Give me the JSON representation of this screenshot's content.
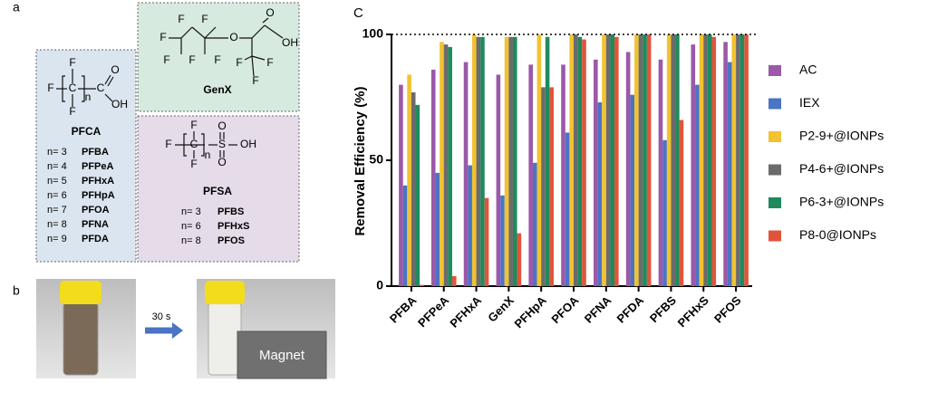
{
  "panel_labels": [
    "a",
    "b",
    "C"
  ],
  "pfca": {
    "atoms": [
      "F",
      "F",
      "C",
      "C",
      "O",
      "OH",
      "F",
      "n"
    ],
    "title": "PFCA",
    "members": [
      {
        "n": "n= 3",
        "name": "PFBA"
      },
      {
        "n": "n= 4",
        "name": "PFPeA"
      },
      {
        "n": "n= 5",
        "name": "PFHxA"
      },
      {
        "n": "n= 6",
        "name": "PFHpA"
      },
      {
        "n": "n= 7",
        "name": "PFOA"
      },
      {
        "n": "n= 8",
        "name": "PFNA"
      },
      {
        "n": "n= 9",
        "name": "PFDA"
      }
    ]
  },
  "genx": {
    "atoms": [
      "F",
      "F",
      "F",
      "F",
      "F",
      "F",
      "O",
      "O",
      "OH",
      "F",
      "F",
      "F"
    ],
    "title": "GenX"
  },
  "pfsa": {
    "atoms": [
      "F",
      "F",
      "C",
      "S",
      "O",
      "O",
      "OH",
      "F",
      "n"
    ],
    "title": "PFSA",
    "members": [
      {
        "n": "n= 3",
        "name": "PFBS"
      },
      {
        "n": "n= 6",
        "name": "PFHxS"
      },
      {
        "n": "n= 8",
        "name": "PFOS"
      }
    ]
  },
  "photo": {
    "time": "30 s",
    "magnet": "Magnet"
  },
  "chart_data": {
    "type": "bar",
    "y_label": "Removal Efficiency (%)",
    "categories": [
      "PFBA",
      "PFPeA",
      "PFHxA",
      "GenX",
      "PFHpA",
      "PFOA",
      "PFNA",
      "PFDA",
      "PFBS",
      "PFHxS",
      "PFOS"
    ],
    "series": [
      {
        "name": "AC",
        "color": "#9b59a8",
        "values": [
          80,
          86,
          89,
          84,
          88,
          88,
          90,
          93,
          90,
          96,
          97
        ]
      },
      {
        "name": "IEX",
        "color": "#4a74c4",
        "values": [
          40,
          45,
          48,
          36,
          49,
          61,
          73,
          76,
          58,
          80,
          89
        ]
      },
      {
        "name": "P2-9+@IONPs",
        "color": "#f2c230",
        "values": [
          84,
          97,
          100,
          99,
          100,
          100,
          100,
          100,
          100,
          100,
          100
        ]
      },
      {
        "name": "P4-6+@IONPs",
        "color": "#6b6b6b",
        "values": [
          77,
          96,
          99,
          99,
          79,
          100,
          100,
          100,
          100,
          100,
          100
        ]
      },
      {
        "name": "P6-3+@IONPs",
        "color": "#1f8a5c",
        "values": [
          72,
          95,
          99,
          99,
          99,
          99,
          100,
          100,
          100,
          100,
          100
        ]
      },
      {
        "name": "P8-0@IONPs",
        "color": "#e0553a",
        "values": [
          0.5,
          4,
          35,
          21,
          79,
          98,
          99,
          100,
          66,
          99,
          100
        ]
      }
    ],
    "ylim": [
      0,
      100
    ],
    "yticks": [
      0,
      50,
      100
    ],
    "hline": 100
  }
}
